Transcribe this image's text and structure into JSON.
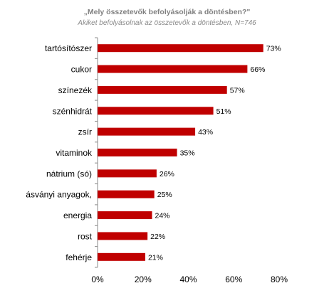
{
  "chart_data": {
    "type": "bar",
    "orientation": "horizontal",
    "title": "„Mely összetevők befolyásolják a döntésben?\"",
    "subtitle": "Akiket befolyásolnak az összetevők a döntésben, N=746",
    "categories": [
      "tartósítószer",
      "cukor",
      "színezék",
      "szénhidrát",
      "zsír",
      "vitaminok",
      "nátrium (só)",
      "ásványi anyagok,",
      "energia",
      "rost",
      "fehérje"
    ],
    "values": [
      73,
      66,
      57,
      51,
      43,
      35,
      26,
      25,
      24,
      22,
      21
    ],
    "value_labels": [
      "73%",
      "66%",
      "57%",
      "51%",
      "43%",
      "35%",
      "26%",
      "25%",
      "24%",
      "22%",
      "21%"
    ],
    "xlim": [
      0,
      80
    ],
    "xticks": [
      0,
      20,
      40,
      60,
      80
    ],
    "xtick_labels": [
      "0%",
      "20%",
      "40%",
      "60%",
      "80%"
    ],
    "bar_color": "#c00000",
    "grid": false,
    "legend": "none"
  }
}
